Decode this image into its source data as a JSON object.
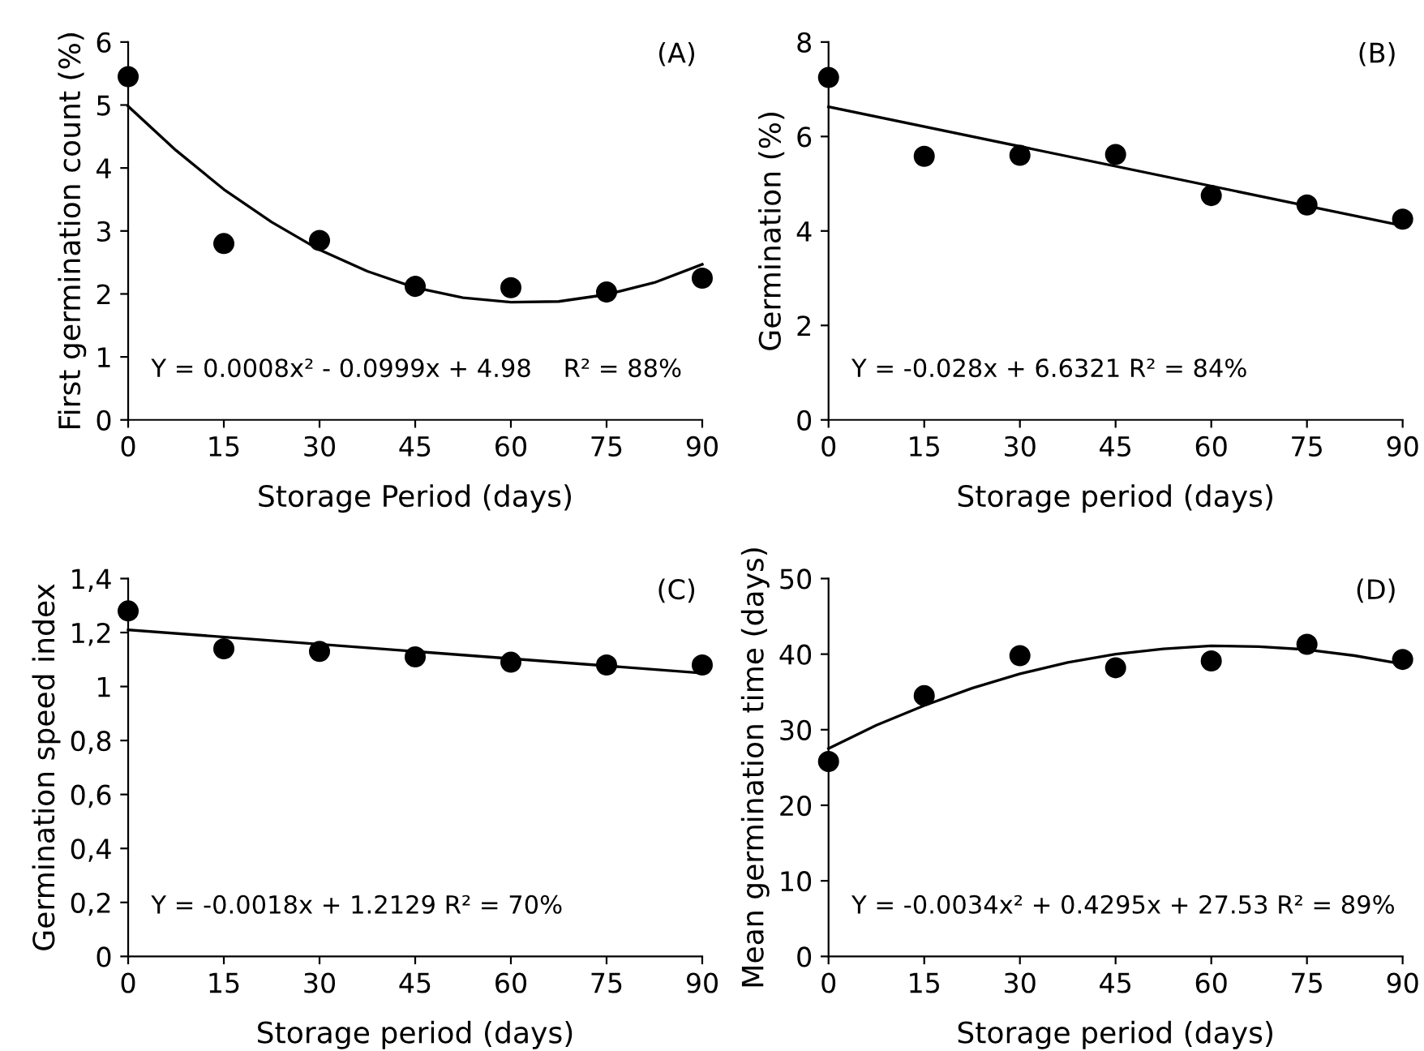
{
  "chart_data": [
    {
      "type": "scatter",
      "title": "(A)",
      "xlabel": "Storage Period (days)",
      "ylabel": "First germination count (%)",
      "x": [
        0,
        15,
        30,
        45,
        60,
        75,
        90
      ],
      "xlim": [
        0,
        90
      ],
      "xticks": [
        0,
        15,
        30,
        45,
        60,
        75,
        90
      ],
      "ylim": [
        0,
        6
      ],
      "yticks": [
        0,
        1,
        2,
        3,
        4,
        5,
        6
      ],
      "grid": false,
      "legend": false,
      "marker": "circle",
      "series": [
        {
          "color": "#000000",
          "values": [
            5.45,
            2.8,
            2.85,
            2.12,
            2.1,
            2.03,
            2.25
          ]
        },
        {
          "type": "line",
          "color": "#000000",
          "line_style": "solid",
          "marker": "none",
          "x": [
            0,
            7.5,
            15,
            22.5,
            30,
            37.5,
            45,
            52.5,
            60,
            67.5,
            75,
            82.5,
            90
          ],
          "values": [
            4.98,
            4.28,
            3.66,
            3.14,
            2.7,
            2.36,
            2.1,
            1.94,
            1.87,
            1.88,
            1.99,
            2.18,
            2.47
          ]
        }
      ],
      "annotations": [
        "Y = 0.0008x² - 0.0999x + 4.98    R² = 88%"
      ]
    },
    {
      "type": "scatter",
      "title": "(B)",
      "xlabel": "Storage period (days)",
      "ylabel": "Germination (%)",
      "x": [
        0,
        15,
        30,
        45,
        60,
        75,
        90
      ],
      "xlim": [
        0,
        90
      ],
      "xticks": [
        0,
        15,
        30,
        45,
        60,
        75,
        90
      ],
      "ylim": [
        0,
        8
      ],
      "yticks": [
        0,
        2,
        4,
        6,
        8
      ],
      "grid": false,
      "legend": false,
      "marker": "circle",
      "series": [
        {
          "color": "#000000",
          "values": [
            7.25,
            5.58,
            5.6,
            5.62,
            4.75,
            4.55,
            4.25
          ]
        },
        {
          "type": "line",
          "color": "#000000",
          "line_style": "solid",
          "marker": "none",
          "x": [
            0,
            90
          ],
          "values": [
            6.63,
            4.11
          ]
        }
      ],
      "annotations": [
        "Y = -0.028x + 6.6321 R² = 84%"
      ]
    },
    {
      "type": "scatter",
      "title": "(C)",
      "xlabel": "Storage period (days)",
      "ylabel": "Germination speed index",
      "x": [
        0,
        15,
        30,
        45,
        60,
        75,
        90
      ],
      "xlim": [
        0,
        90
      ],
      "xticks": [
        0,
        15,
        30,
        45,
        60,
        75,
        90
      ],
      "ylim": [
        0,
        1.4
      ],
      "yticks": [
        0,
        {
          "value": 0.2,
          "label": "0,2"
        },
        {
          "value": 0.4,
          "label": "0,4"
        },
        {
          "value": 0.6,
          "label": "0,6"
        },
        {
          "value": 0.8,
          "label": "0,8"
        },
        1,
        {
          "value": 1.2,
          "label": "1,2"
        },
        {
          "value": 1.4,
          "label": "1,4"
        }
      ],
      "grid": false,
      "legend": false,
      "marker": "circle",
      "series": [
        {
          "color": "#000000",
          "values": [
            1.28,
            1.14,
            1.13,
            1.11,
            1.09,
            1.08,
            1.08
          ]
        },
        {
          "type": "line",
          "color": "#000000",
          "line_style": "solid",
          "marker": "none",
          "x": [
            0,
            90
          ],
          "values": [
            1.21,
            1.05
          ]
        }
      ],
      "annotations": [
        "Y = -0.0018x + 1.2129 R² = 70%"
      ]
    },
    {
      "type": "scatter",
      "title": "(D)",
      "xlabel": "Storage period (days)",
      "ylabel": "Mean germination time (days)",
      "x": [
        0,
        15,
        30,
        45,
        60,
        75,
        90
      ],
      "xlim": [
        0,
        90
      ],
      "xticks": [
        0,
        15,
        30,
        45,
        60,
        75,
        90
      ],
      "ylim": [
        0,
        50
      ],
      "yticks": [
        0,
        10,
        20,
        30,
        40,
        50
      ],
      "grid": false,
      "legend": false,
      "marker": "circle",
      "series": [
        {
          "color": "#000000",
          "values": [
            25.8,
            34.5,
            39.8,
            38.2,
            39.1,
            41.3,
            39.3
          ]
        },
        {
          "type": "line",
          "color": "#000000",
          "line_style": "solid",
          "marker": "none",
          "x": [
            0,
            7.5,
            15,
            22.5,
            30,
            37.5,
            45,
            52.5,
            60,
            67.5,
            75,
            82.5,
            90
          ],
          "values": [
            27.5,
            30.6,
            33.2,
            35.5,
            37.4,
            38.9,
            40.0,
            40.7,
            41.1,
            41.0,
            40.6,
            39.8,
            38.7
          ]
        }
      ],
      "annotations": [
        "Y = -0.0034x² + 0.4295x + 27.53 R² = 89%"
      ]
    }
  ]
}
